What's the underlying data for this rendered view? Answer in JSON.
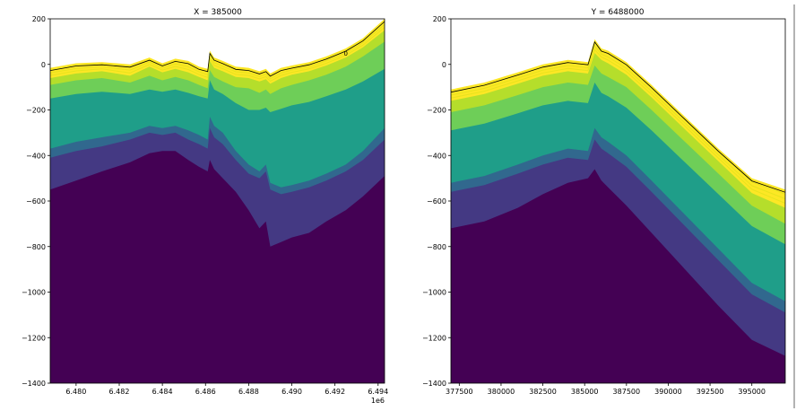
{
  "chart_data": [
    {
      "type": "area",
      "title": "X = 385000",
      "xlabel": "",
      "ylabel": "",
      "x_offset_label": "1e6",
      "xlim": [
        6.4788,
        6.4943
      ],
      "ylim": [
        -1400,
        200
      ],
      "xticks": [
        "6.480",
        "6.482",
        "6.484",
        "6.486",
        "6.488",
        "6.490",
        "6.492",
        "6.494"
      ],
      "yticks": [
        "200",
        "0",
        "-200",
        "-400",
        "-600",
        "-800",
        "-1000",
        "-1200",
        "-1400"
      ],
      "contour_label": "0",
      "x": [
        6.4788,
        6.48,
        6.4812,
        6.4825,
        6.4834,
        6.484,
        6.4846,
        6.4852,
        6.4857,
        6.4861,
        6.4862,
        6.4864,
        6.4868,
        6.4874,
        6.488,
        6.4885,
        6.4888,
        6.489,
        6.4895,
        6.49,
        6.4908,
        6.4916,
        6.4925,
        6.4933,
        6.4943
      ],
      "surface": [
        -15,
        5,
        10,
        0,
        30,
        5,
        25,
        15,
        -10,
        -20,
        60,
        30,
        15,
        -10,
        -15,
        -30,
        -20,
        -40,
        -15,
        -5,
        10,
        35,
        70,
        115,
        200
      ],
      "boundaries_top_down": [
        [
          -60,
          -40,
          -30,
          -50,
          -10,
          -35,
          -20,
          -35,
          -55,
          -70,
          15,
          -15,
          -30,
          -55,
          -60,
          -75,
          -65,
          -85,
          -60,
          -45,
          -30,
          -5,
          30,
          75,
          150
        ],
        [
          -90,
          -70,
          -60,
          -80,
          -50,
          -70,
          -55,
          -70,
          -90,
          -105,
          -25,
          -55,
          -75,
          -100,
          -105,
          -125,
          -110,
          -130,
          -105,
          -90,
          -70,
          -45,
          -10,
          35,
          100
        ],
        [
          -150,
          -130,
          -120,
          -130,
          -110,
          -120,
          -110,
          -125,
          -140,
          -150,
          -70,
          -110,
          -130,
          -170,
          -200,
          -200,
          -190,
          -210,
          -195,
          -180,
          -165,
          -140,
          -110,
          -75,
          -20
        ],
        [
          -370,
          -340,
          -320,
          -300,
          -270,
          -280,
          -270,
          -290,
          -310,
          -330,
          -230,
          -270,
          -300,
          -380,
          -440,
          -470,
          -440,
          -520,
          -540,
          -530,
          -510,
          -480,
          -440,
          -380,
          -280
        ],
        [
          -410,
          -380,
          -360,
          -330,
          -300,
          -310,
          -300,
          -330,
          -350,
          -370,
          -280,
          -320,
          -350,
          -420,
          -480,
          -500,
          -470,
          -550,
          -570,
          -560,
          -540,
          -510,
          -470,
          -420,
          -330
        ],
        [
          -550,
          -510,
          -470,
          -430,
          -390,
          -380,
          -380,
          -420,
          -450,
          -470,
          -420,
          -460,
          -500,
          -560,
          -640,
          -720,
          -690,
          -800,
          -780,
          -760,
          -740,
          -690,
          -640,
          -580,
          -490
        ]
      ]
    },
    {
      "type": "area",
      "title": "Y = 6488000",
      "xlabel": "",
      "ylabel": "",
      "xlim": [
        377000,
        397000
      ],
      "ylim": [
        -1400,
        200
      ],
      "xticks": [
        "377500",
        "380000",
        "382500",
        "385000",
        "387500",
        "390000",
        "392500",
        "395000"
      ],
      "yticks": [
        "200",
        "0",
        "-200",
        "-400",
        "-600",
        "-800",
        "-1000",
        "-1200",
        "-1400"
      ],
      "x": [
        377000,
        379000,
        381000,
        382500,
        384000,
        385200,
        385600,
        386000,
        386400,
        387500,
        389000,
        391000,
        393000,
        395000,
        397000
      ],
      "surface": [
        -110,
        -80,
        -35,
        0,
        20,
        10,
        110,
        70,
        60,
        10,
        -90,
        -230,
        -370,
        -500,
        -550
      ],
      "boundaries_top_down": [
        [
          -160,
          -130,
          -85,
          -50,
          -30,
          -40,
          50,
          20,
          5,
          -45,
          -145,
          -285,
          -425,
          -565,
          -630
        ],
        [
          -210,
          -180,
          -135,
          -100,
          -80,
          -90,
          -5,
          -40,
          -55,
          -100,
          -200,
          -340,
          -480,
          -620,
          -700
        ],
        [
          -290,
          -260,
          -215,
          -180,
          -160,
          -170,
          -80,
          -125,
          -140,
          -190,
          -290,
          -430,
          -570,
          -710,
          -790
        ],
        [
          -520,
          -490,
          -440,
          -400,
          -370,
          -380,
          -280,
          -320,
          -340,
          -400,
          -510,
          -660,
          -810,
          -960,
          -1040
        ],
        [
          -560,
          -530,
          -480,
          -440,
          -410,
          -420,
          -330,
          -370,
          -390,
          -450,
          -560,
          -710,
          -860,
          -1010,
          -1090
        ],
        [
          -720,
          -690,
          -630,
          -570,
          -520,
          -500,
          -460,
          -510,
          -540,
          -620,
          -740,
          -900,
          -1060,
          -1210,
          -1280
        ]
      ]
    }
  ],
  "colors": {
    "bands_top_down": [
      "#fde725",
      "#b5de2b",
      "#6ece58",
      "#1f9e89",
      "#31688e",
      "#443983",
      "#440154"
    ],
    "surface_line": "#000000",
    "contour_line": "#000000"
  }
}
